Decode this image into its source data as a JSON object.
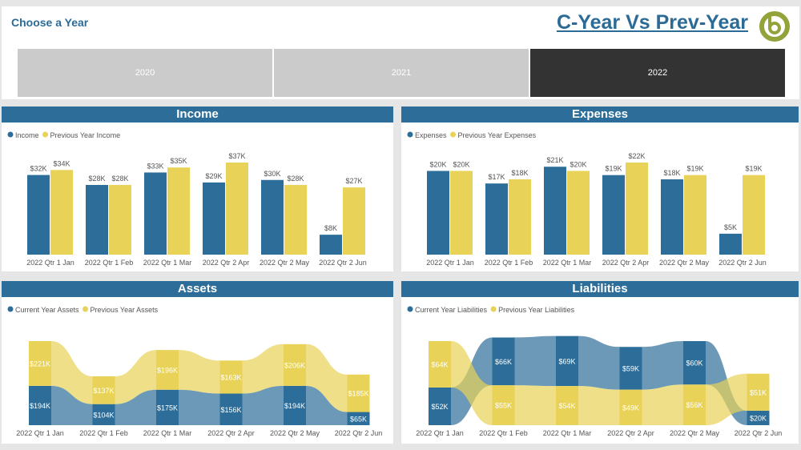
{
  "header": {
    "choose_label": "Choose a Year",
    "title": "C-Year Vs Prev-Year",
    "logo_letter": "b"
  },
  "slicer": {
    "options": [
      "2020",
      "2021",
      "2022"
    ],
    "selected": "2022"
  },
  "colors": {
    "current": "#2c6e99",
    "previous": "#e8d257",
    "header": "#2c6e99"
  },
  "charts": [
    {
      "id": "income",
      "title": "Income",
      "type": "bar",
      "legend": [
        "Income",
        "Previous Year Income"
      ],
      "chart_data": {
        "type": "bar",
        "categories": [
          "2022 Qtr 1 Jan",
          "2022 Qtr 1 Feb",
          "2022 Qtr 1 Mar",
          "2022 Qtr 2 Apr",
          "2022 Qtr 2 May",
          "2022 Qtr 2 Jun"
        ],
        "series": [
          {
            "name": "Income",
            "values": [
              32,
              28,
              33,
              29,
              30,
              8
            ],
            "labels": [
              "$32K",
              "$28K",
              "$33K",
              "$29K",
              "$30K",
              "$8K"
            ]
          },
          {
            "name": "Previous Year Income",
            "values": [
              34,
              28,
              35,
              37,
              28,
              27
            ],
            "labels": [
              "$34K",
              "$28K",
              "$35K",
              "$37K",
              "$28K",
              "$27K"
            ]
          }
        ],
        "unit": "$K"
      }
    },
    {
      "id": "expenses",
      "title": "Expenses",
      "type": "bar",
      "legend": [
        "Expenses",
        "Previous Year Expenses"
      ],
      "chart_data": {
        "type": "bar",
        "categories": [
          "2022 Qtr 1 Jan",
          "2022 Qtr 1 Feb",
          "2022 Qtr 1 Mar",
          "2022 Qtr 2 Apr",
          "2022 Qtr 2 May",
          "2022 Qtr 2 Jun"
        ],
        "series": [
          {
            "name": "Expenses",
            "values": [
              20,
              17,
              21,
              19,
              18,
              5
            ],
            "labels": [
              "$20K",
              "$17K",
              "$21K",
              "$19K",
              "$18K",
              "$5K"
            ]
          },
          {
            "name": "Previous Year Expenses",
            "values": [
              20,
              18,
              20,
              22,
              19,
              19
            ],
            "labels": [
              "$20K",
              "$18K",
              "$20K",
              "$22K",
              "$19K",
              "$19K"
            ]
          }
        ],
        "unit": "$K"
      }
    },
    {
      "id": "assets",
      "title": "Assets",
      "type": "ribbon",
      "legend": [
        "Current Year Assets",
        "Previous Year Assets"
      ],
      "chart_data": {
        "type": "ribbon",
        "categories": [
          "2022 Qtr 1 Jan",
          "2022 Qtr 1 Feb",
          "2022 Qtr 1 Mar",
          "2022 Qtr 2 Apr",
          "2022 Qtr 2 May",
          "2022 Qtr 2 Jun"
        ],
        "series": [
          {
            "name": "Current Year Assets",
            "values": [
              194,
              104,
              175,
              156,
              194,
              65
            ],
            "labels": [
              "$194K",
              "$104K",
              "$175K",
              "$156K",
              "$194K",
              "$65K"
            ]
          },
          {
            "name": "Previous Year Assets",
            "values": [
              221,
              137,
              196,
              163,
              206,
              185
            ],
            "labels": [
              "$221K",
              "$137K",
              "$196K",
              "$163K",
              "$206K",
              "$185K"
            ]
          }
        ],
        "unit": "$K"
      }
    },
    {
      "id": "liabilities",
      "title": "Liabilities",
      "type": "ribbon",
      "legend": [
        "Current Year Liabilities",
        "Previous Year Liabilities"
      ],
      "chart_data": {
        "type": "ribbon",
        "categories": [
          "2022 Qtr 1 Jan",
          "2022 Qtr 1 Feb",
          "2022 Qtr 1 Mar",
          "2022 Qtr 2 Apr",
          "2022 Qtr 2 May",
          "2022 Qtr 2 Jun"
        ],
        "series": [
          {
            "name": "Current Year Liabilities",
            "values": [
              52,
              66,
              69,
              59,
              60,
              20
            ],
            "labels": [
              "$52K",
              "$66K",
              "$69K",
              "$59K",
              "$60K",
              "$20K"
            ]
          },
          {
            "name": "Previous Year Liabilities",
            "values": [
              64,
              55,
              54,
              49,
              56,
              51
            ],
            "labels": [
              "$64K",
              "$55K",
              "$54K",
              "$49K",
              "$56K",
              "$51K"
            ]
          }
        ],
        "unit": "$K"
      }
    }
  ]
}
